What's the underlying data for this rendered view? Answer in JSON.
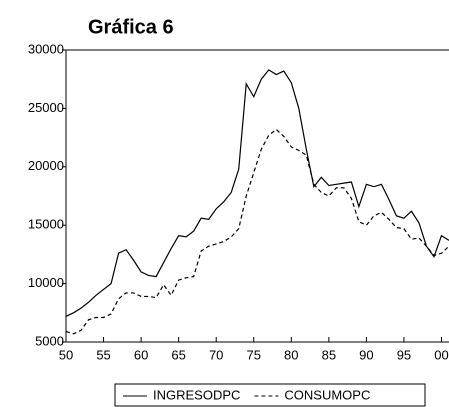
{
  "chart_data": {
    "type": "line",
    "title": "Gráfica 6",
    "x": [
      1950,
      1951,
      1952,
      1953,
      1954,
      1955,
      1956,
      1957,
      1958,
      1959,
      1960,
      1961,
      1962,
      1963,
      1964,
      1965,
      1966,
      1967,
      1968,
      1969,
      1970,
      1971,
      1972,
      1973,
      1974,
      1975,
      1976,
      1977,
      1978,
      1979,
      1980,
      1981,
      1982,
      1983,
      1984,
      1985,
      1986,
      1987,
      1988,
      1989,
      1990,
      1991,
      1992,
      1993,
      1994,
      1995,
      1996,
      1997,
      1998,
      1999,
      2000,
      2001
    ],
    "series": [
      {
        "name": "INGRESODPC",
        "color": "#000000",
        "dash": "none",
        "values": [
          7200,
          7500,
          7900,
          8400,
          9000,
          9500,
          10000,
          12600,
          12900,
          12000,
          11000,
          10700,
          10600,
          11800,
          13000,
          14100,
          14000,
          14500,
          15600,
          15500,
          16400,
          17000,
          17800,
          19800,
          27100,
          26000,
          27500,
          28300,
          27900,
          28200,
          27200,
          25000,
          21500,
          18300,
          19100,
          18400,
          18500,
          18600,
          18700,
          16600,
          18500,
          18300,
          18500,
          17200,
          15800,
          15600,
          16200,
          15200,
          13200,
          12300,
          14100,
          13700
        ]
      },
      {
        "name": "CONSUMOPC",
        "color": "#000000",
        "dash": "4,3",
        "values": [
          5900,
          5700,
          6000,
          6900,
          7100,
          7100,
          7400,
          8700,
          9200,
          9200,
          8900,
          8900,
          8800,
          9900,
          9000,
          10300,
          10500,
          10600,
          12800,
          13200,
          13400,
          13600,
          14000,
          14700,
          17500,
          19500,
          21500,
          22700,
          23200,
          22600,
          21700,
          21400,
          21000,
          18500,
          17800,
          17500,
          18200,
          18200,
          17300,
          15300,
          15000,
          15800,
          16100,
          15500,
          14800,
          14700,
          13800,
          13900,
          13200,
          12400,
          12600,
          13200
        ]
      }
    ],
    "xlim": [
      1950,
      2001
    ],
    "xticks": [
      {
        "value": 1950,
        "label": "50"
      },
      {
        "value": 1955,
        "label": "55"
      },
      {
        "value": 1960,
        "label": "60"
      },
      {
        "value": 1965,
        "label": "65"
      },
      {
        "value": 1970,
        "label": "70"
      },
      {
        "value": 1975,
        "label": "75"
      },
      {
        "value": 1980,
        "label": "80"
      },
      {
        "value": 1985,
        "label": "85"
      },
      {
        "value": 1990,
        "label": "90"
      },
      {
        "value": 1995,
        "label": "95"
      },
      {
        "value": 2000,
        "label": "00"
      }
    ],
    "ylim": [
      5000,
      30000
    ],
    "yticks": [
      5000,
      10000,
      15000,
      20000,
      25000,
      30000
    ],
    "legend": "bottom"
  }
}
